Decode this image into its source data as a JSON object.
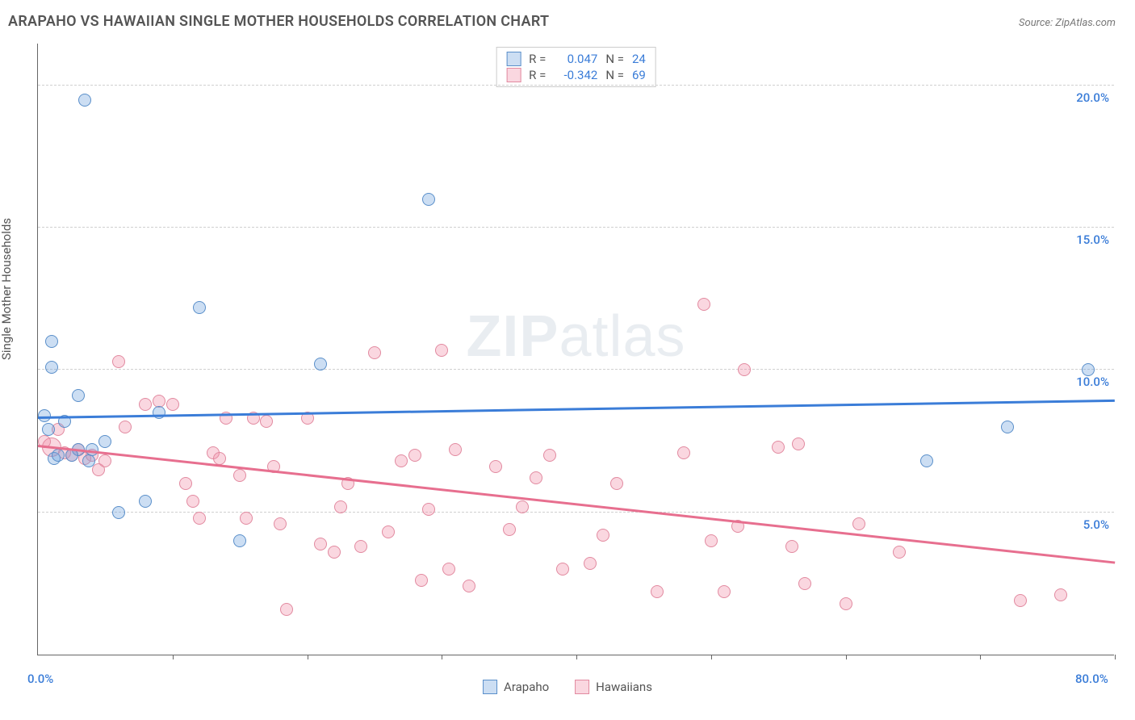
{
  "title": "ARAPAHO VS HAWAIIAN SINGLE MOTHER HOUSEHOLDS CORRELATION CHART",
  "source_label": "Source: ZipAtlas.com",
  "ylabel": "Single Mother Households",
  "watermark": {
    "bold": "ZIP",
    "rest": "atlas"
  },
  "chart": {
    "type": "scatter",
    "xlim": [
      0,
      80
    ],
    "ylim": [
      0,
      21.5
    ],
    "x_ticks": [
      0,
      10,
      20,
      30,
      40,
      50,
      60,
      70,
      80
    ],
    "x_labeled_ticks": [
      0,
      80
    ],
    "x_tick_format_pct": true,
    "y_ticks": [
      5,
      10,
      15,
      20
    ],
    "y_tick_format_pct": true,
    "grid_color": "#d0d0d0",
    "axis_color": "#666666",
    "background_color": "#ffffff",
    "tick_label_color": "#3b7dd8",
    "ylabel_color": "#555555",
    "title_color": "#555555",
    "point_radius": 8,
    "point_radius_large": 12
  },
  "series": {
    "arapaho": {
      "label": "Arapaho",
      "fill": "rgba(110,160,220,0.35)",
      "stroke": "#5a8fca",
      "line_color": "#3b7dd8",
      "R": "0.047",
      "N": "24",
      "regression": {
        "x1": 0,
        "y1": 8.3,
        "x2": 80,
        "y2": 8.9
      },
      "points": [
        [
          3.5,
          19.5
        ],
        [
          29,
          16.0
        ],
        [
          1.0,
          11.0
        ],
        [
          1.0,
          10.1
        ],
        [
          12,
          12.2
        ],
        [
          3,
          9.1
        ],
        [
          0.5,
          8.4
        ],
        [
          2,
          8.2
        ],
        [
          3,
          7.2
        ],
        [
          4,
          7.2
        ],
        [
          21,
          10.2
        ],
        [
          78,
          10.0
        ],
        [
          72,
          8.0
        ],
        [
          66,
          6.8
        ],
        [
          8,
          5.4
        ],
        [
          6,
          5.0
        ],
        [
          15,
          4.0
        ],
        [
          2.5,
          7.0
        ],
        [
          1.2,
          6.9
        ],
        [
          0.8,
          7.9
        ],
        [
          1.5,
          7.0
        ],
        [
          5,
          7.5
        ],
        [
          9,
          8.5
        ],
        [
          3.8,
          6.8
        ]
      ]
    },
    "hawaiians": {
      "label": "Hawaiians",
      "fill": "rgba(240,140,165,0.35)",
      "stroke": "#e28aa0",
      "line_color": "#e76f8f",
      "R": "-0.342",
      "N": "69",
      "regression": {
        "x1": 0,
        "y1": 7.3,
        "x2": 80,
        "y2": 3.2
      },
      "points": [
        [
          1,
          7.3
        ],
        [
          1.5,
          7.9
        ],
        [
          2,
          7.1
        ],
        [
          2.5,
          7.0
        ],
        [
          3,
          7.2
        ],
        [
          3.5,
          6.9
        ],
        [
          4,
          7.0
        ],
        [
          4.5,
          6.5
        ],
        [
          5,
          6.8
        ],
        [
          6,
          10.3
        ],
        [
          6.5,
          8.0
        ],
        [
          8,
          8.8
        ],
        [
          9,
          8.9
        ],
        [
          10,
          8.8
        ],
        [
          11,
          6.0
        ],
        [
          11.5,
          5.4
        ],
        [
          12,
          4.8
        ],
        [
          13,
          7.1
        ],
        [
          13.5,
          6.9
        ],
        [
          14,
          8.3
        ],
        [
          15,
          6.3
        ],
        [
          15.5,
          4.8
        ],
        [
          16,
          8.3
        ],
        [
          17,
          8.2
        ],
        [
          17.5,
          6.6
        ],
        [
          18,
          4.6
        ],
        [
          18.5,
          1.6
        ],
        [
          20,
          8.3
        ],
        [
          21,
          3.9
        ],
        [
          22,
          3.6
        ],
        [
          22.5,
          5.2
        ],
        [
          23,
          6.0
        ],
        [
          24,
          3.8
        ],
        [
          25,
          10.6
        ],
        [
          26,
          4.3
        ],
        [
          27,
          6.8
        ],
        [
          28,
          7.0
        ],
        [
          28.5,
          2.6
        ],
        [
          29,
          5.1
        ],
        [
          30,
          10.7
        ],
        [
          30.5,
          3.0
        ],
        [
          31,
          7.2
        ],
        [
          32,
          2.4
        ],
        [
          34,
          6.6
        ],
        [
          35,
          4.4
        ],
        [
          36,
          5.2
        ],
        [
          37,
          6.2
        ],
        [
          38,
          7.0
        ],
        [
          39,
          3.0
        ],
        [
          41,
          3.2
        ],
        [
          42,
          4.2
        ],
        [
          43,
          6.0
        ],
        [
          46,
          2.2
        ],
        [
          48,
          7.1
        ],
        [
          49.5,
          12.3
        ],
        [
          50,
          4.0
        ],
        [
          51,
          2.2
        ],
        [
          52,
          4.5
        ],
        [
          55,
          7.3
        ],
        [
          52.5,
          10.0
        ],
        [
          56,
          3.8
        ],
        [
          57,
          2.5
        ],
        [
          56.5,
          7.4
        ],
        [
          60,
          1.8
        ],
        [
          61,
          4.6
        ],
        [
          64,
          3.6
        ],
        [
          73,
          1.9
        ],
        [
          76,
          2.1
        ],
        [
          0.5,
          7.5
        ]
      ]
    }
  },
  "r_legend": {
    "R_label": "R =",
    "N_label": "N ="
  },
  "series_legend_order": [
    "arapaho",
    "hawaiians"
  ]
}
